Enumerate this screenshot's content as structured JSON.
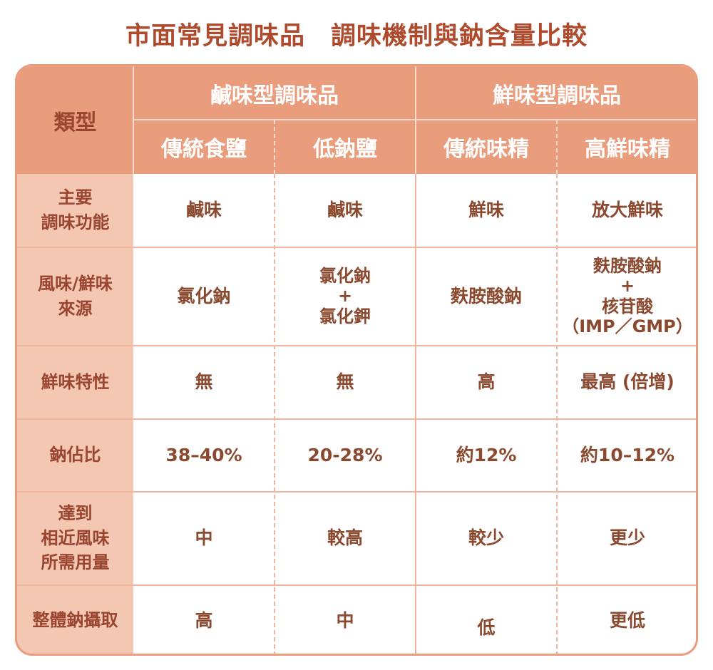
{
  "title": "市面常見調味品　調味機制與鈉含量比較",
  "colors": {
    "title": "#b04a2c",
    "header_bg": "#e99d7d",
    "label_col_bg": "#f4c7b3",
    "text": "#8b4a2f"
  },
  "header": {
    "type_label": "類型",
    "groups": [
      "鹹味型調味品",
      "鮮味型調味品"
    ],
    "columns": [
      "傳統食鹽",
      "低鈉鹽",
      "傳統味精",
      "高鮮味精"
    ]
  },
  "rows": [
    {
      "label": "主要\n調味功能",
      "values": [
        "鹹味",
        "鹹味",
        "鮮味",
        "放大鮮味"
      ]
    },
    {
      "label": "風味/鮮味\n來源",
      "values": [
        "氯化鈉",
        "氯化鈉\n+\n氯化鉀",
        "麩胺酸鈉",
        "麩胺酸鈉\n+\n核苷酸\n（IMP／GMP）"
      ]
    },
    {
      "label": "鮮味特性",
      "values": [
        "無",
        "無",
        "高",
        "最高 (倍增)"
      ]
    },
    {
      "label": "鈉佔比",
      "values": [
        "38–40%",
        "20-28%",
        "約12%",
        "約10–12%"
      ]
    },
    {
      "label": "達到\n相近風味\n所需用量",
      "values": [
        "中",
        "較高",
        "較少",
        "更少"
      ]
    },
    {
      "label": "整體鈉攝取",
      "values": [
        "高",
        "中",
        "低",
        "更低"
      ]
    }
  ]
}
